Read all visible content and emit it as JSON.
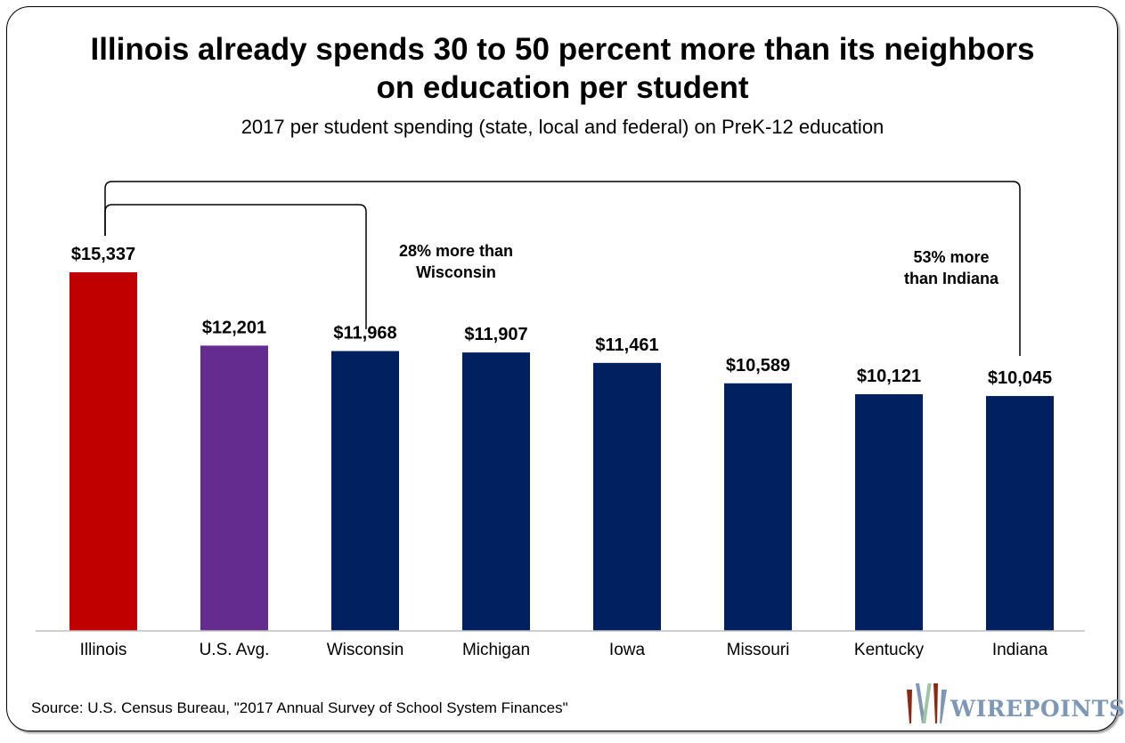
{
  "chart_data": {
    "type": "bar",
    "title": "Illinois already spends 30 to 50 percent more than its neighbors on education per student",
    "subtitle": "2017 per student spending (state, local and federal) on PreK-12 education",
    "categories": [
      "Illinois",
      "U.S. Avg.",
      "Wisconsin",
      "Michigan",
      "Iowa",
      "Missouri",
      "Kentucky",
      "Indiana"
    ],
    "values": [
      15337,
      12201,
      11968,
      11907,
      11461,
      10589,
      10121,
      10045
    ],
    "data_labels": [
      "$15,337",
      "$12,201",
      "$11,968",
      "$11,907",
      "$11,461",
      "$10,589",
      "$10,121",
      "$10,045"
    ],
    "colors": [
      "#c00000",
      "#652c8f",
      "#002060",
      "#002060",
      "#002060",
      "#002060",
      "#002060",
      "#002060"
    ],
    "ylim": [
      0,
      18000
    ],
    "grid": false,
    "legend": "none",
    "annotations": [
      {
        "text_lines": [
          "28% more than",
          "Wisconsin"
        ],
        "from": "Illinois",
        "to": "Wisconsin"
      },
      {
        "text_lines": [
          "53% more",
          "than Indiana"
        ],
        "from": "Illinois",
        "to": "Indiana"
      }
    ]
  },
  "source": "Source: U.S. Census Bureau, \"2017 Annual Survey of School System Finances\"",
  "logo": {
    "text": "WIREPOINTS",
    "colors": [
      "#8b2a14",
      "#9fc6a4",
      "#7f97b7"
    ]
  }
}
